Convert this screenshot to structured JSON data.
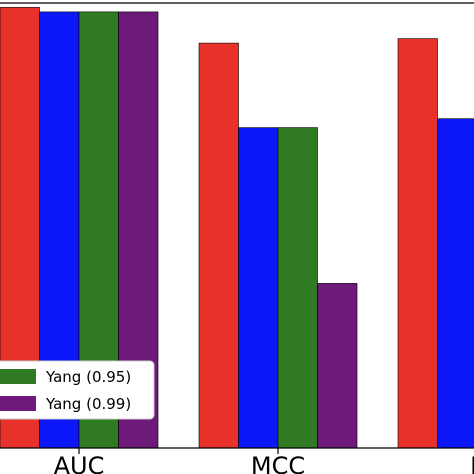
{
  "colors": {
    "red": "#e8312a",
    "blue": "#0b17f8",
    "green": "#2f7a22",
    "purple": "#6d1a7a"
  },
  "chart_data": {
    "type": "bar",
    "categories": [
      "AUC",
      "MCC",
      "F"
    ],
    "ylim": [
      0,
      1
    ],
    "grid": false,
    "legend_position": "bottom-left",
    "series": [
      {
        "values": [
          0.99,
          0.91,
          0.92
        ],
        "color": "#e8312a"
      },
      {
        "values": [
          0.98,
          0.72,
          0.74
        ],
        "color": "#0b17f8"
      },
      {
        "name": "Yang (0.95)",
        "values": [
          0.98,
          0.72,
          null
        ],
        "color": "#2f7a22"
      },
      {
        "name": "Yang (0.99)",
        "values": [
          0.98,
          0.37,
          null
        ],
        "color": "#6d1a7a"
      }
    ]
  }
}
